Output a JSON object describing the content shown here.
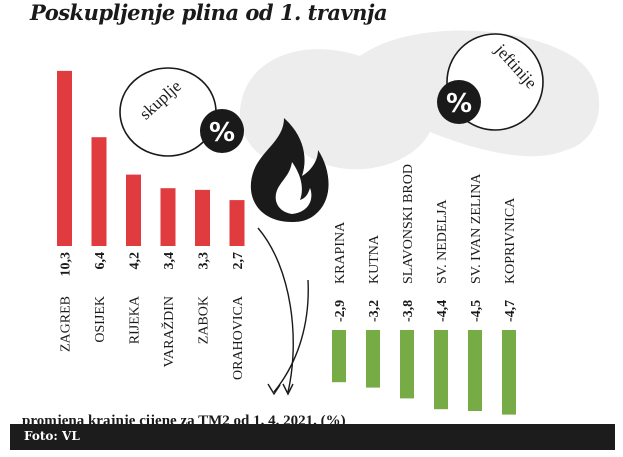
{
  "chart_data": {
    "type": "bar",
    "title": "Poskupljenje plina od 1. travnja",
    "annotation": "promjena krajnje cijene za TM2 od 1. 4. 2021. (%)",
    "badge_up": "skuplje",
    "badge_down": "jeftinije",
    "percent_sign": "%",
    "increase": {
      "color": "#e03b3f",
      "categories": [
        "ZAGREB",
        "OSIJEK",
        "RIJEKA",
        "VARAŽDIN",
        "ZABOK",
        "ORAHOVICA"
      ],
      "labels": [
        "10,3",
        "6,4",
        "4,2",
        "3,4",
        "3,3",
        "2,7"
      ],
      "values": [
        10.3,
        6.4,
        4.2,
        3.4,
        3.3,
        2.7
      ]
    },
    "decrease": {
      "color": "#77ab45",
      "categories": [
        "KRAPINA",
        "KUTNA",
        "SLAVONSKI BROD",
        "SV. NEDELJA",
        "SV. IVAN ZELINA",
        "KOPRIVNICA"
      ],
      "labels": [
        "-2,9",
        "-3,2",
        "-3,8",
        "-4,4",
        "-4,5",
        "-4,7"
      ],
      "values": [
        -2.9,
        -3.2,
        -3.8,
        -4.4,
        -4.5,
        -4.7
      ]
    }
  },
  "icons": {
    "flame": "flame-icon",
    "arrow": "arrow-icon",
    "blob": "blob-shape"
  },
  "footer": {
    "credit": "Foto: VL"
  }
}
